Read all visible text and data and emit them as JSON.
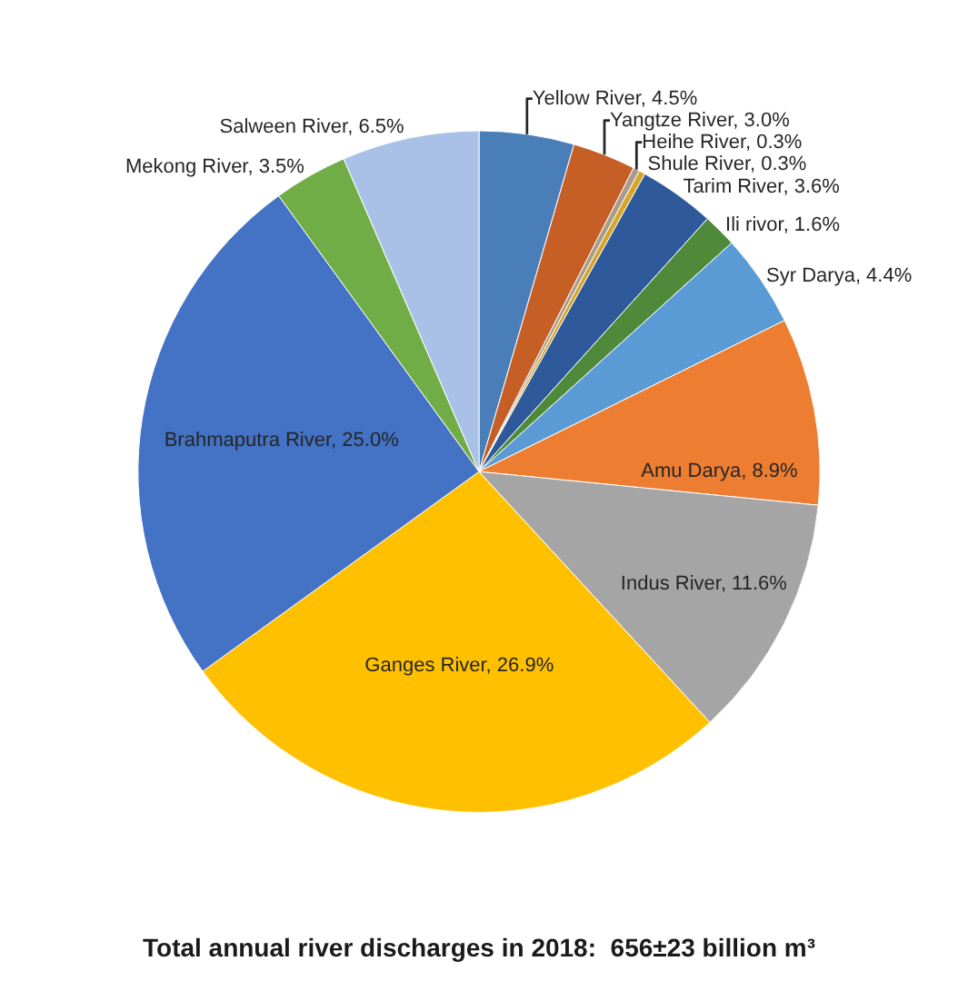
{
  "chart_data": {
    "type": "pie",
    "title": "Total annual river discharges in 2018:  656±23 billion m³",
    "categories": [
      "Yellow River",
      "Yangtze River",
      "Heihe River",
      "Shule River",
      "Tarim River",
      "Ili rivor",
      "Syr Darya",
      "Amu Darya",
      "Indus River",
      "Ganges River",
      "Brahmaputra River",
      "Mekong River",
      "Salween River"
    ],
    "values": [
      4.5,
      3.0,
      0.3,
      0.3,
      3.6,
      1.6,
      4.4,
      8.9,
      11.6,
      26.9,
      25.0,
      3.5,
      6.5
    ],
    "value_labels": [
      "4.5%",
      "3.0%",
      "0.3%",
      "0.3%",
      "3.6%",
      "1.6%",
      "4.4%",
      "8.9%",
      "11.6%",
      "26.9%",
      "25.0%",
      "3.5%",
      "6.5%"
    ],
    "colors": [
      "#4a7eb8",
      "#c65f26",
      "#a89c8c",
      "#d6a526",
      "#2e5a9c",
      "#4f8a3a",
      "#5b9bd5",
      "#ed7d31",
      "#a5a5a5",
      "#ffc000",
      "#4472c4",
      "#70ad47",
      "#a9c1e6"
    ]
  }
}
